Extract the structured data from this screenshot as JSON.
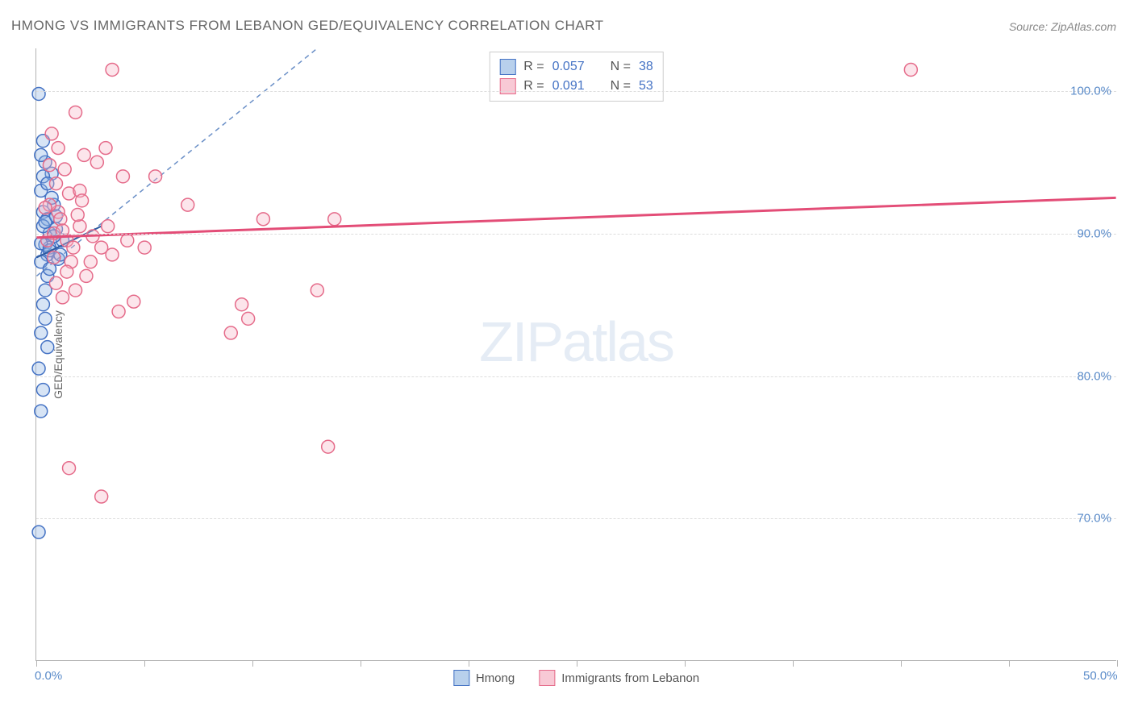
{
  "title": "HMONG VS IMMIGRANTS FROM LEBANON GED/EQUIVALENCY CORRELATION CHART",
  "source": "Source: ZipAtlas.com",
  "watermark_zip": "ZIP",
  "watermark_atlas": "atlas",
  "y_axis_label": "GED/Equivalency",
  "chart": {
    "type": "scatter",
    "xlim": [
      0,
      50
    ],
    "ylim": [
      60,
      103
    ],
    "y_ticks": [
      70,
      80,
      90,
      100
    ],
    "y_tick_labels": [
      "70.0%",
      "80.0%",
      "90.0%",
      "100.0%"
    ],
    "x_ticks": [
      0,
      5,
      10,
      15,
      20,
      25,
      30,
      35,
      40,
      45,
      50
    ],
    "x_tick_labels_shown": {
      "0": "0.0%",
      "50": "50.0%"
    },
    "background_color": "#ffffff",
    "grid_color": "#dddddd",
    "axis_color": "#b3b3b3",
    "tick_label_color": "#5a8bc9",
    "marker_radius": 8,
    "marker_stroke_width": 1.5,
    "marker_fill_opacity": 0.35,
    "series": [
      {
        "name": "Hmong",
        "color": "#8bb3e3",
        "stroke": "#4472c4",
        "R": "0.057",
        "N": "38",
        "trend": {
          "x1": 0,
          "y1": 88.3,
          "x2": 3,
          "y2": 90.5,
          "color": "#2c5aa0",
          "width": 2
        },
        "diag_line": {
          "x1": 0,
          "y1": 87,
          "x2": 13,
          "y2": 103,
          "color": "#6a8fc7",
          "dash": "6,5"
        },
        "points": [
          [
            0.1,
            99.8
          ],
          [
            0.5,
            88.5
          ],
          [
            0.4,
            89.2
          ],
          [
            0.6,
            90
          ],
          [
            0.3,
            91.5
          ],
          [
            0.2,
            93
          ],
          [
            0.8,
            92
          ],
          [
            0.4,
            95
          ],
          [
            0.3,
            96.5
          ],
          [
            0.7,
            94.2
          ],
          [
            0.2,
            88
          ],
          [
            0.5,
            87
          ],
          [
            0.6,
            89
          ],
          [
            1.2,
            89.5
          ],
          [
            0.9,
            90.3
          ],
          [
            0.3,
            85
          ],
          [
            0.4,
            84
          ],
          [
            0.2,
            83
          ],
          [
            0.5,
            82
          ],
          [
            0.1,
            80.5
          ],
          [
            0.3,
            79
          ],
          [
            0.2,
            77.5
          ],
          [
            0.1,
            69
          ],
          [
            0.4,
            86
          ],
          [
            0.6,
            87.5
          ],
          [
            1.0,
            88.2
          ],
          [
            0.8,
            89.8
          ],
          [
            0.5,
            91
          ],
          [
            0.7,
            92.5
          ],
          [
            0.3,
            90.5
          ],
          [
            0.2,
            89.3
          ],
          [
            0.4,
            90.8
          ],
          [
            0.6,
            88.8
          ],
          [
            0.9,
            91.2
          ],
          [
            1.1,
            88.5
          ],
          [
            0.3,
            94
          ],
          [
            0.5,
            93.5
          ],
          [
            0.2,
            95.5
          ]
        ]
      },
      {
        "name": "Immigrants from Lebanon",
        "color": "#f5b5c5",
        "stroke": "#e56b8a",
        "R": "0.091",
        "N": "53",
        "trend": {
          "x1": 0,
          "y1": 89.7,
          "x2": 50,
          "y2": 92.5,
          "color": "#e34d77",
          "width": 3
        },
        "points": [
          [
            3.5,
            101.5
          ],
          [
            1.8,
            98.5
          ],
          [
            1.0,
            91.5
          ],
          [
            1.5,
            92.8
          ],
          [
            2.2,
            95.5
          ],
          [
            2.8,
            95
          ],
          [
            3.2,
            96
          ],
          [
            1.2,
            85.5
          ],
          [
            1.8,
            86
          ],
          [
            2.0,
            93
          ],
          [
            3.0,
            89
          ],
          [
            3.5,
            88.5
          ],
          [
            4.0,
            94
          ],
          [
            4.2,
            89.5
          ],
          [
            3.8,
            84.5
          ],
          [
            4.5,
            85.2
          ],
          [
            5.0,
            89
          ],
          [
            5.5,
            94
          ],
          [
            7.0,
            92
          ],
          [
            3.0,
            71.5
          ],
          [
            1.5,
            73.5
          ],
          [
            0.8,
            90
          ],
          [
            1.1,
            91
          ],
          [
            1.4,
            89.5
          ],
          [
            0.6,
            92
          ],
          [
            0.9,
            93.5
          ],
          [
            1.3,
            94.5
          ],
          [
            2.5,
            88
          ],
          [
            2.0,
            90.5
          ],
          [
            1.7,
            89
          ],
          [
            10.5,
            91
          ],
          [
            9.8,
            84
          ],
          [
            9.5,
            85
          ],
          [
            9.0,
            83
          ],
          [
            13.0,
            86
          ],
          [
            13.5,
            75
          ],
          [
            13.8,
            91
          ],
          [
            40.5,
            101.5
          ],
          [
            1.0,
            96
          ],
          [
            0.7,
            97
          ],
          [
            1.6,
            88
          ],
          [
            2.3,
            87
          ],
          [
            0.5,
            89.5
          ],
          [
            0.8,
            88.3
          ],
          [
            1.2,
            90.2
          ],
          [
            1.9,
            91.3
          ],
          [
            2.6,
            89.8
          ],
          [
            0.4,
            91.8
          ],
          [
            0.9,
            86.5
          ],
          [
            1.4,
            87.3
          ],
          [
            2.1,
            92.3
          ],
          [
            3.3,
            90.5
          ],
          [
            0.6,
            94.8
          ]
        ]
      }
    ]
  },
  "stats_box": {
    "rows": [
      {
        "swatch_fill": "#b8d0ec",
        "swatch_border": "#4472c4",
        "r_label": "R =",
        "r_val": "0.057",
        "n_label": "N =",
        "n_val": "38"
      },
      {
        "swatch_fill": "#f8c9d5",
        "swatch_border": "#e56b8a",
        "r_label": "R =",
        "r_val": "0.091",
        "n_label": "N =",
        "n_val": "53"
      }
    ]
  },
  "bottom_legend": [
    {
      "swatch_fill": "#b8d0ec",
      "swatch_border": "#4472c4",
      "label": "Hmong"
    },
    {
      "swatch_fill": "#f8c9d5",
      "swatch_border": "#e56b8a",
      "label": "Immigrants from Lebanon"
    }
  ]
}
